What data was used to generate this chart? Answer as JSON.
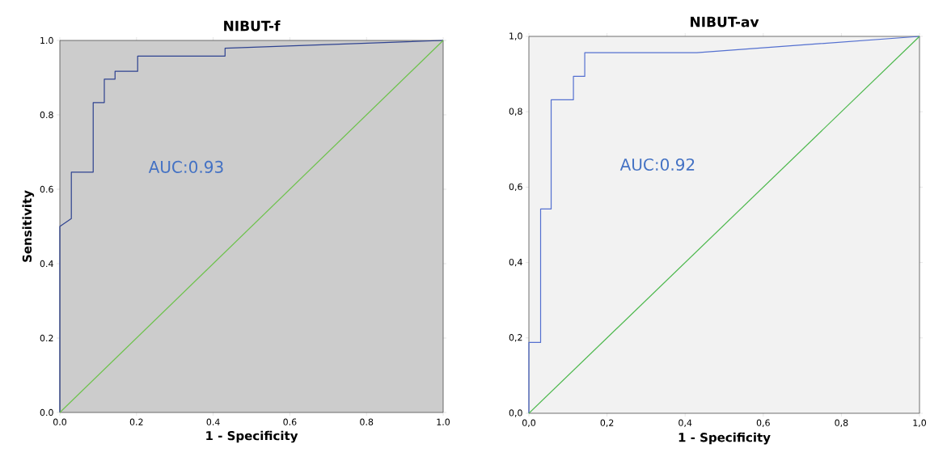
{
  "chart_data": [
    {
      "type": "line",
      "title": "NIBUT-f",
      "xlabel": "1 - Specificity",
      "ylabel": "Sensitivity",
      "xlim": [
        0,
        1
      ],
      "ylim": [
        0,
        1
      ],
      "xticks": [
        {
          "value": 0,
          "label": "0.0"
        },
        {
          "value": 0.2,
          "label": "0.2"
        },
        {
          "value": 0.4,
          "label": "0.4"
        },
        {
          "value": 0.6,
          "label": "0.6"
        },
        {
          "value": 0.8,
          "label": "0.8"
        },
        {
          "value": 1,
          "label": "1.0"
        }
      ],
      "yticks": [
        {
          "value": 0,
          "label": "0.0"
        },
        {
          "value": 0.2,
          "label": "0.2"
        },
        {
          "value": 0.4,
          "label": "0.4"
        },
        {
          "value": 0.6,
          "label": "0.6"
        },
        {
          "value": 0.8,
          "label": "0.8"
        },
        {
          "value": 1,
          "label": "1.0"
        }
      ],
      "series": [
        {
          "color": "#2e4290",
          "x": [
            0,
            0,
            0.03,
            0.03,
            0.087,
            0.087,
            0.116,
            0.116,
            0.144,
            0.144,
            0.203,
            0.203,
            0.431,
            0.431,
            1
          ],
          "values": [
            0,
            0.5,
            0.521,
            0.646,
            0.646,
            0.833,
            0.833,
            0.896,
            0.896,
            0.917,
            0.917,
            0.958,
            0.958,
            0.979,
            1
          ]
        },
        {
          "color": "#6cc24a",
          "x": [
            0,
            1
          ],
          "values": [
            0,
            1
          ]
        }
      ],
      "annotations": [
        "AUC:0.93"
      ]
    },
    {
      "type": "line",
      "title": "NIBUT-av",
      "xlabel": "1 - Specificity",
      "xlim": [
        0,
        1
      ],
      "ylim": [
        0,
        1
      ],
      "xticks": [
        {
          "value": 0,
          "label": "0,0"
        },
        {
          "value": 0.2,
          "label": "0,2"
        },
        {
          "value": 0.4,
          "label": "0,4"
        },
        {
          "value": 0.6,
          "label": "0,6"
        },
        {
          "value": 0.8,
          "label": "0,8"
        },
        {
          "value": 1,
          "label": "1,0"
        }
      ],
      "yticks": [
        {
          "value": 0,
          "label": "0,0"
        },
        {
          "value": 0.2,
          "label": "0,2"
        },
        {
          "value": 0.4,
          "label": "0,4"
        },
        {
          "value": 0.6,
          "label": "0,6"
        },
        {
          "value": 0.8,
          "label": "0,8"
        },
        {
          "value": 1,
          "label": "1,0"
        }
      ],
      "series": [
        {
          "color": "#5470d0",
          "x": [
            0,
            0,
            0.03,
            0.03,
            0.057,
            0.057,
            0.114,
            0.114,
            0.143,
            0.143,
            0.43,
            1
          ],
          "values": [
            0,
            0.188,
            0.188,
            0.542,
            0.542,
            0.832,
            0.832,
            0.894,
            0.894,
            0.957,
            0.957,
            1
          ]
        },
        {
          "color": "#4cb84c",
          "x": [
            0,
            1
          ],
          "values": [
            0,
            1
          ]
        }
      ],
      "annotations": [
        "AUC:0.92"
      ]
    }
  ]
}
